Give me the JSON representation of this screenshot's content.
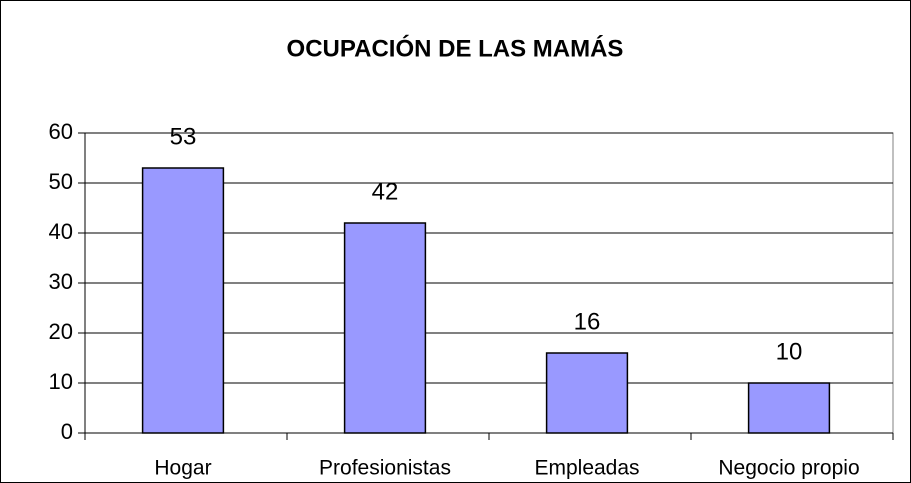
{
  "chart_data": {
    "type": "bar",
    "title": "OCUPACIÓN DE LAS MAMÁS",
    "categories": [
      "Hogar",
      "Profesionistas",
      "Empleadas",
      "Negocio propio"
    ],
    "values": [
      53,
      42,
      16,
      10
    ],
    "color": "#9999ff",
    "ylim": [
      0,
      60
    ],
    "yticks": [
      0,
      10,
      20,
      30,
      40,
      50,
      60
    ],
    "grid": true
  }
}
